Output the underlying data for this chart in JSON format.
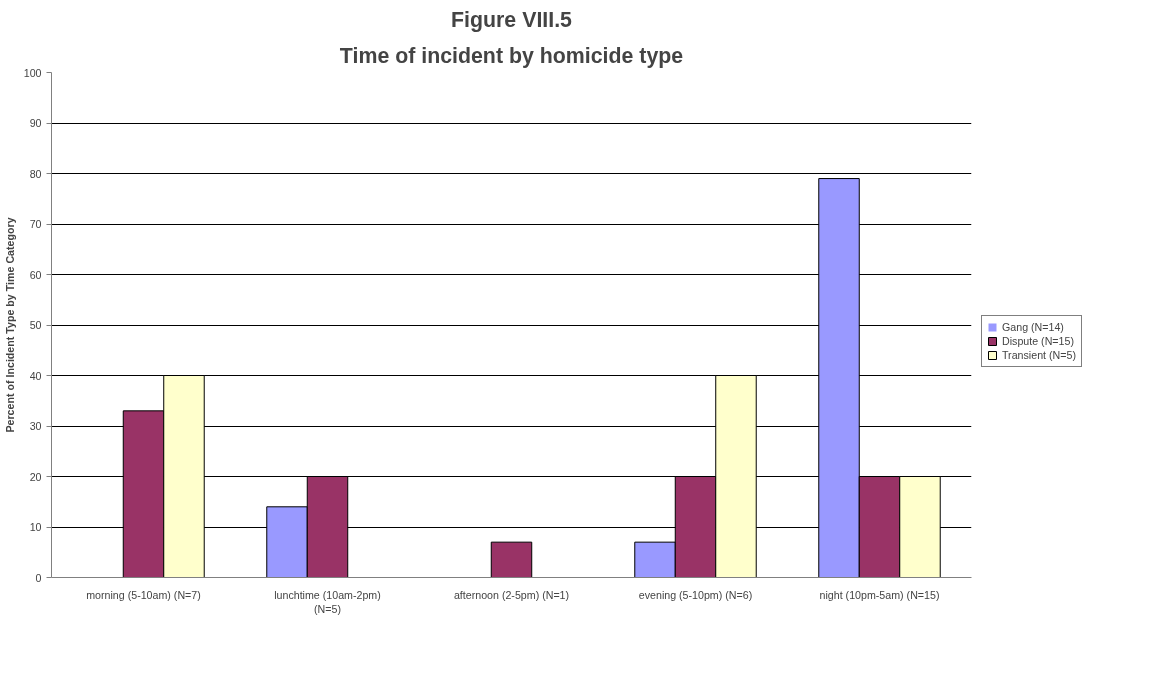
{
  "chart_data": {
    "type": "bar",
    "title": "Figure VIII.5",
    "subtitle": "Time of incident by homicide type",
    "ylabel": "Percent of Incident Type by Time Category",
    "categories": [
      "morning (5-10am) (N=7)",
      "lunchtime (10am-2pm) (N=5)",
      "afternoon (2-5pm) (N=1)",
      "evening (5-10pm) (N=6)",
      "night (10pm-5am) (N=15)"
    ],
    "series": [
      {
        "name": "Gang (N=14)",
        "color": "#9999ff",
        "values": [
          0,
          14,
          0,
          7,
          79
        ]
      },
      {
        "name": "Dispute (N=15)",
        "color": "#993366",
        "values": [
          33,
          20,
          7,
          20,
          20
        ]
      },
      {
        "name": "Transient (N=5)",
        "color": "#ffffcc",
        "values": [
          40,
          0,
          0,
          40,
          20
        ]
      }
    ],
    "ylim": [
      0,
      100
    ],
    "yticks": [
      0,
      10,
      20,
      30,
      40,
      50,
      60,
      70,
      80,
      90,
      100
    ],
    "grid": "y",
    "legend": "right"
  }
}
